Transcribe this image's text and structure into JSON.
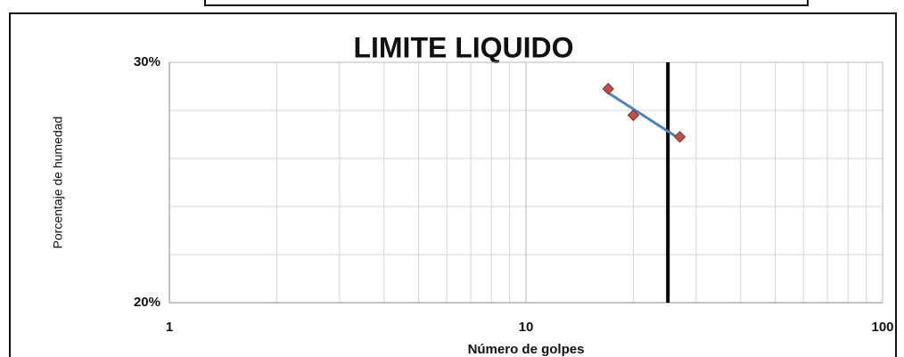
{
  "chart_data": {
    "type": "scatter",
    "title": "LIMITE LIQUIDO",
    "xlabel": "Número de golpes",
    "ylabel": "Porcentaje de humedad",
    "x": [
      17,
      20,
      27
    ],
    "values": [
      28.9,
      27.8,
      26.9
    ],
    "color": "#c0504d",
    "trendline_color": "#4f81bd",
    "vline": 25,
    "vline_color": "#000000",
    "xscale": "log",
    "xlim": [
      1,
      100
    ],
    "xticks": [
      1,
      10,
      100
    ],
    "xminor": [
      2,
      3,
      4,
      5,
      6,
      7,
      8,
      9,
      20,
      30,
      40,
      50,
      60,
      70,
      80,
      90
    ],
    "ylim": [
      20,
      30
    ],
    "yticks": [
      {
        "value": 20,
        "label": "20%"
      },
      {
        "value": 30,
        "label": "30%"
      }
    ],
    "yminor": [
      22,
      24,
      26,
      28
    ],
    "grid": true
  }
}
